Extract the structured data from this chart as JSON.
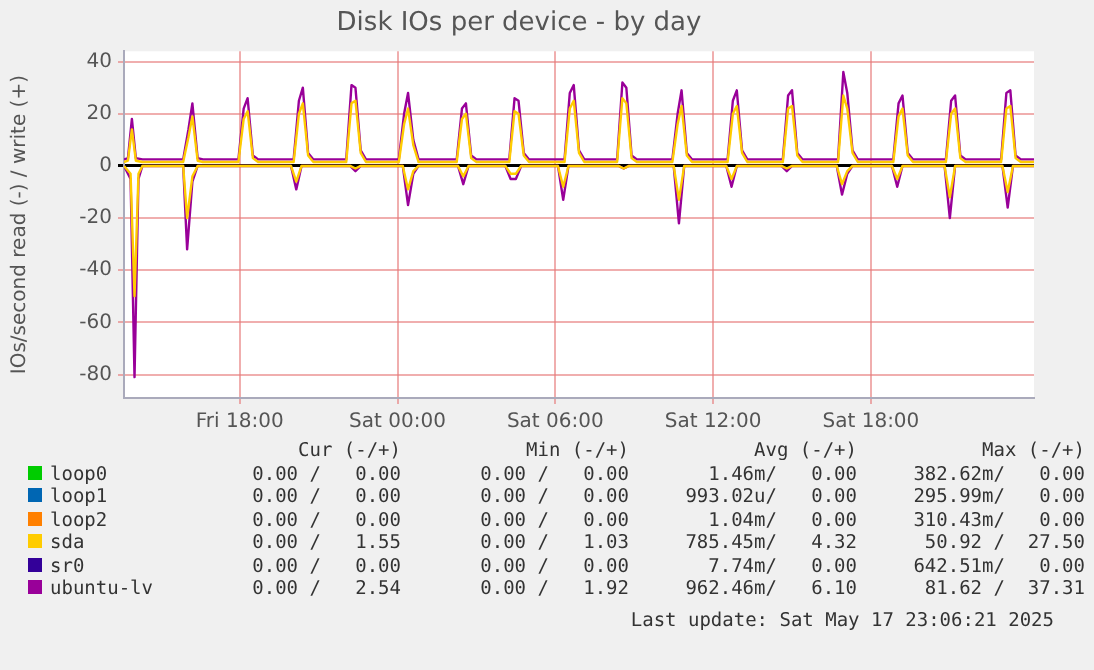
{
  "chart_data": {
    "type": "line",
    "title": "Disk IOs per device - by day",
    "ylabel": "IOs/second read (-) / write (+)",
    "xlim": [
      "2025-05-16T13:36",
      "2025-05-18T00:12"
    ],
    "xticks": [
      {
        "value": "2025-05-16T18:00",
        "label": "Fri 18:00"
      },
      {
        "value": "2025-05-17T00:00",
        "label": "Sat 00:00"
      },
      {
        "value": "2025-05-17T06:00",
        "label": "Sat 06:00"
      },
      {
        "value": "2025-05-17T12:00",
        "label": "Sat 12:00"
      },
      {
        "value": "2025-05-17T18:00",
        "label": "Sat 18:00"
      }
    ],
    "ylim": [
      -89,
      44
    ],
    "yticks": [
      -80,
      -60,
      -40,
      -20,
      0,
      20,
      40
    ],
    "grid": true,
    "legend": "bottom",
    "marker": "none",
    "line_style": "solid",
    "series": [
      {
        "name": "loop0",
        "color": "#00cc00"
      },
      {
        "name": "loop1",
        "color": "#0066b3"
      },
      {
        "name": "loop2",
        "color": "#ff8000"
      },
      {
        "name": "sda",
        "color": "#ffcc00",
        "x": [
          "2025-05-16T13:36",
          "2025-05-16T13:45",
          "2025-05-16T13:54",
          "2025-05-16T14:03",
          "2025-05-16T14:18",
          "2025-05-16T15:51",
          "2025-05-16T16:03",
          "2025-05-16T16:12",
          "2025-05-16T16:24",
          "2025-05-16T16:36",
          "2025-05-16T17:57",
          "2025-05-16T18:09",
          "2025-05-16T18:18",
          "2025-05-16T18:30",
          "2025-05-16T18:42",
          "2025-05-16T20:03",
          "2025-05-16T20:15",
          "2025-05-16T20:24",
          "2025-05-16T20:36",
          "2025-05-16T20:48",
          "2025-05-16T22:03",
          "2025-05-16T22:15",
          "2025-05-16T22:24",
          "2025-05-16T22:36",
          "2025-05-16T22:48",
          "2025-05-17T00:03",
          "2025-05-17T00:15",
          "2025-05-17T00:24",
          "2025-05-17T00:36",
          "2025-05-17T00:48",
          "2025-05-17T02:15",
          "2025-05-17T02:27",
          "2025-05-17T02:36",
          "2025-05-17T02:48",
          "2025-05-17T03:00",
          "2025-05-17T04:15",
          "2025-05-17T04:27",
          "2025-05-17T04:36",
          "2025-05-17T04:48",
          "2025-05-17T05:00",
          "2025-05-17T06:21",
          "2025-05-17T06:33",
          "2025-05-17T06:42",
          "2025-05-17T06:54",
          "2025-05-17T07:06",
          "2025-05-17T08:21",
          "2025-05-17T08:33",
          "2025-05-17T08:42",
          "2025-05-17T08:54",
          "2025-05-17T09:06",
          "2025-05-17T10:27",
          "2025-05-17T10:39",
          "2025-05-17T10:48",
          "2025-05-17T11:00",
          "2025-05-17T11:12",
          "2025-05-17T12:33",
          "2025-05-17T12:45",
          "2025-05-17T12:54",
          "2025-05-17T13:06",
          "2025-05-17T13:18",
          "2025-05-17T14:39",
          "2025-05-17T14:51",
          "2025-05-17T15:00",
          "2025-05-17T15:12",
          "2025-05-17T15:24",
          "2025-05-17T16:45",
          "2025-05-17T16:57",
          "2025-05-17T17:06",
          "2025-05-17T17:18",
          "2025-05-17T17:30",
          "2025-05-17T18:51",
          "2025-05-17T19:03",
          "2025-05-17T19:12",
          "2025-05-17T19:24",
          "2025-05-17T19:36",
          "2025-05-17T20:51",
          "2025-05-17T21:03",
          "2025-05-17T21:12",
          "2025-05-17T21:24",
          "2025-05-17T21:36",
          "2025-05-17T22:57",
          "2025-05-17T23:09",
          "2025-05-17T23:18",
          "2025-05-17T23:30",
          "2025-05-17T23:42",
          "2025-05-18T00:12"
        ],
        "values": [
          1.5,
          2,
          14,
          2,
          1.5,
          1.5,
          11,
          19,
          2,
          1.5,
          1.5,
          18,
          21,
          3,
          1.5,
          1.5,
          20,
          24,
          4,
          1.5,
          1.5,
          24,
          25,
          5,
          1.5,
          1.5,
          16,
          22,
          8,
          1.5,
          1.5,
          18,
          20,
          3,
          1.5,
          1.5,
          21,
          20,
          4,
          1.5,
          1.5,
          22,
          25,
          5,
          1.5,
          1.5,
          26,
          24,
          3,
          1.5,
          1.5,
          16,
          23,
          4,
          1.5,
          1.5,
          20,
          23,
          5,
          1.5,
          1.5,
          22,
          23,
          4,
          1.5,
          1.5,
          27,
          22,
          5,
          1.5,
          1.5,
          19,
          22,
          4,
          1.5,
          1.5,
          20,
          22,
          3,
          1.5,
          1.5,
          22,
          23,
          3,
          1.5,
          1.5
        ]
      },
      {
        "name": "sr0",
        "color": "#330099"
      },
      {
        "name": "ubuntu-lv",
        "color": "#990099",
        "x": [
          "2025-05-16T13:36",
          "2025-05-16T13:45",
          "2025-05-16T13:54",
          "2025-05-16T14:03",
          "2025-05-16T14:18",
          "2025-05-16T15:51",
          "2025-05-16T16:03",
          "2025-05-16T16:12",
          "2025-05-16T16:24",
          "2025-05-16T16:36",
          "2025-05-16T17:57",
          "2025-05-16T18:09",
          "2025-05-16T18:18",
          "2025-05-16T18:30",
          "2025-05-16T18:42",
          "2025-05-16T20:03",
          "2025-05-16T20:15",
          "2025-05-16T20:24",
          "2025-05-16T20:36",
          "2025-05-16T20:48",
          "2025-05-16T22:03",
          "2025-05-16T22:15",
          "2025-05-16T22:24",
          "2025-05-16T22:36",
          "2025-05-16T22:48",
          "2025-05-17T00:03",
          "2025-05-17T00:15",
          "2025-05-17T00:24",
          "2025-05-17T00:36",
          "2025-05-17T00:48",
          "2025-05-17T02:15",
          "2025-05-17T02:27",
          "2025-05-17T02:36",
          "2025-05-17T02:48",
          "2025-05-17T03:00",
          "2025-05-17T04:15",
          "2025-05-17T04:27",
          "2025-05-17T04:36",
          "2025-05-17T04:48",
          "2025-05-17T05:00",
          "2025-05-17T06:21",
          "2025-05-17T06:33",
          "2025-05-17T06:42",
          "2025-05-17T06:54",
          "2025-05-17T07:06",
          "2025-05-17T08:21",
          "2025-05-17T08:33",
          "2025-05-17T08:42",
          "2025-05-17T08:54",
          "2025-05-17T09:06",
          "2025-05-17T10:27",
          "2025-05-17T10:39",
          "2025-05-17T10:48",
          "2025-05-17T11:00",
          "2025-05-17T11:12",
          "2025-05-17T12:33",
          "2025-05-17T12:45",
          "2025-05-17T12:54",
          "2025-05-17T13:06",
          "2025-05-17T13:18",
          "2025-05-17T14:39",
          "2025-05-17T14:51",
          "2025-05-17T15:00",
          "2025-05-17T15:12",
          "2025-05-17T15:24",
          "2025-05-17T16:45",
          "2025-05-17T16:57",
          "2025-05-17T17:06",
          "2025-05-17T17:18",
          "2025-05-17T17:30",
          "2025-05-17T18:51",
          "2025-05-17T19:03",
          "2025-05-17T19:12",
          "2025-05-17T19:24",
          "2025-05-17T19:36",
          "2025-05-17T20:51",
          "2025-05-17T21:03",
          "2025-05-17T21:12",
          "2025-05-17T21:24",
          "2025-05-17T21:36",
          "2025-05-17T22:57",
          "2025-05-17T23:09",
          "2025-05-17T23:18",
          "2025-05-17T23:30",
          "2025-05-17T23:42",
          "2025-05-18T00:12"
        ],
        "values": [
          2.5,
          3,
          18,
          3,
          2.5,
          2.5,
          14,
          24,
          3,
          2.5,
          2.5,
          22,
          26,
          4,
          2.5,
          2.5,
          25,
          30,
          5,
          2.5,
          2.5,
          31,
          30,
          6,
          2.5,
          2.5,
          20,
          28,
          10,
          2.5,
          2.5,
          22,
          24,
          4,
          2.5,
          2.5,
          26,
          25,
          5,
          2.5,
          2.5,
          28,
          31,
          6,
          2.5,
          2.5,
          32,
          30,
          4,
          2.5,
          2.5,
          20,
          29,
          5,
          2.5,
          2.5,
          25,
          29,
          6,
          2.5,
          2.5,
          27,
          29,
          5,
          2.5,
          2.5,
          36,
          28,
          6,
          2.5,
          2.5,
          24,
          27,
          5,
          2.5,
          2.5,
          25,
          27,
          4,
          2.5,
          2.5,
          28,
          29,
          4,
          2.5,
          2.5
        ]
      },
      {
        "color": "#ffcc00",
        "x": [
          "2025-05-16T13:36",
          "2025-05-16T13:51",
          "2025-05-16T14:00",
          "2025-05-16T14:09",
          "2025-05-16T14:18",
          "2025-05-16T15:51",
          "2025-05-16T16:00",
          "2025-05-16T16:12",
          "2025-05-16T16:24",
          "2025-05-16T19:57",
          "2025-05-16T20:09",
          "2025-05-16T20:21",
          "2025-05-16T22:12",
          "2025-05-16T22:24",
          "2025-05-16T22:36",
          "2025-05-17T00:12",
          "2025-05-17T00:24",
          "2025-05-17T00:36",
          "2025-05-17T00:48",
          "2025-05-17T02:18",
          "2025-05-17T02:30",
          "2025-05-17T02:42",
          "2025-05-17T04:06",
          "2025-05-17T04:18",
          "2025-05-17T04:30",
          "2025-05-17T04:42",
          "2025-05-17T06:06",
          "2025-05-17T06:18",
          "2025-05-17T06:30",
          "2025-05-17T08:24",
          "2025-05-17T08:36",
          "2025-05-17T08:48",
          "2025-05-17T10:30",
          "2025-05-17T10:42",
          "2025-05-17T10:54",
          "2025-05-17T12:30",
          "2025-05-17T12:42",
          "2025-05-17T12:54",
          "2025-05-17T14:36",
          "2025-05-17T14:48",
          "2025-05-17T15:00",
          "2025-05-17T16:42",
          "2025-05-17T16:54",
          "2025-05-17T17:06",
          "2025-05-17T17:18",
          "2025-05-17T18:48",
          "2025-05-17T19:00",
          "2025-05-17T19:12",
          "2025-05-17T20:48",
          "2025-05-17T21:00",
          "2025-05-17T21:12",
          "2025-05-17T23:00",
          "2025-05-17T23:12",
          "2025-05-17T23:24",
          "2025-05-18T00:12"
        ],
        "values": [
          0,
          -3,
          -50,
          -3,
          0,
          0,
          -20,
          -4,
          0,
          0,
          -6,
          0,
          0,
          -1,
          0,
          0,
          -9,
          -2,
          0,
          0,
          -4,
          0,
          0,
          -3,
          -3,
          0,
          0,
          -8,
          0,
          0,
          -1,
          0,
          0,
          -13,
          0,
          0,
          -5,
          0,
          0,
          -1,
          0,
          0,
          -7,
          -2,
          0,
          0,
          -5,
          0,
          0,
          -12,
          0,
          0,
          -10,
          0,
          0
        ]
      },
      {
        "color": "#990099",
        "x": [
          "2025-05-16T13:36",
          "2025-05-16T13:51",
          "2025-05-16T14:00",
          "2025-05-16T14:09",
          "2025-05-16T14:18",
          "2025-05-16T15:51",
          "2025-05-16T16:00",
          "2025-05-16T16:12",
          "2025-05-16T16:24",
          "2025-05-16T19:57",
          "2025-05-16T20:09",
          "2025-05-16T20:21",
          "2025-05-16T22:12",
          "2025-05-16T22:24",
          "2025-05-16T22:36",
          "2025-05-17T00:12",
          "2025-05-17T00:24",
          "2025-05-17T00:36",
          "2025-05-17T00:48",
          "2025-05-17T02:18",
          "2025-05-17T02:30",
          "2025-05-17T02:42",
          "2025-05-17T04:06",
          "2025-05-17T04:18",
          "2025-05-17T04:30",
          "2025-05-17T04:42",
          "2025-05-17T06:06",
          "2025-05-17T06:18",
          "2025-05-17T06:30",
          "2025-05-17T08:24",
          "2025-05-17T08:36",
          "2025-05-17T08:48",
          "2025-05-17T10:30",
          "2025-05-17T10:42",
          "2025-05-17T10:54",
          "2025-05-17T12:30",
          "2025-05-17T12:42",
          "2025-05-17T12:54",
          "2025-05-17T14:36",
          "2025-05-17T14:48",
          "2025-05-17T15:00",
          "2025-05-17T16:42",
          "2025-05-17T16:54",
          "2025-05-17T17:06",
          "2025-05-17T17:18",
          "2025-05-17T18:48",
          "2025-05-17T19:00",
          "2025-05-17T19:12",
          "2025-05-17T20:48",
          "2025-05-17T21:00",
          "2025-05-17T21:12",
          "2025-05-17T23:00",
          "2025-05-17T23:12",
          "2025-05-17T23:24",
          "2025-05-18T00:12"
        ],
        "values": [
          0,
          -5,
          -81,
          -5,
          0,
          0,
          -32,
          -6,
          0,
          0,
          -9,
          0,
          0,
          -2,
          0,
          0,
          -15,
          -3,
          0,
          0,
          -7,
          0,
          0,
          -5,
          -5,
          0,
          0,
          -13,
          0,
          0,
          -1,
          0,
          0,
          -22,
          0,
          0,
          -8,
          0,
          0,
          -2,
          0,
          0,
          -11,
          -3,
          0,
          0,
          -8,
          0,
          0,
          -20,
          0,
          0,
          -16,
          0,
          0
        ]
      }
    ],
    "annotations": [
      "Cur (-/+)",
      "Min (-/+)",
      "Avg (-/+)",
      "Max (-/+)",
      "0.00 /   0.00",
      "0.00 /   0.00",
      "1.46m/   0.00",
      "382.62m/   0.00",
      "0.00 /   0.00",
      "0.00 /   0.00",
      "993.02u/   0.00",
      "295.99m/   0.00",
      "0.00 /   0.00",
      "0.00 /   0.00",
      "1.04m/   0.00",
      "310.43m/   0.00",
      "0.00 /   1.55",
      "0.00 /   1.03",
      "785.45m/   4.32",
      "50.92 /  27.50",
      "0.00 /   0.00",
      "0.00 /   0.00",
      "7.74m/   0.00",
      "642.51m/   0.00",
      "0.00 /   2.54",
      "0.00 /   1.92",
      "962.46m/   6.10",
      "81.62 /  37.31",
      "Last update: Sat May 17 23:06:21 2025"
    ]
  }
}
